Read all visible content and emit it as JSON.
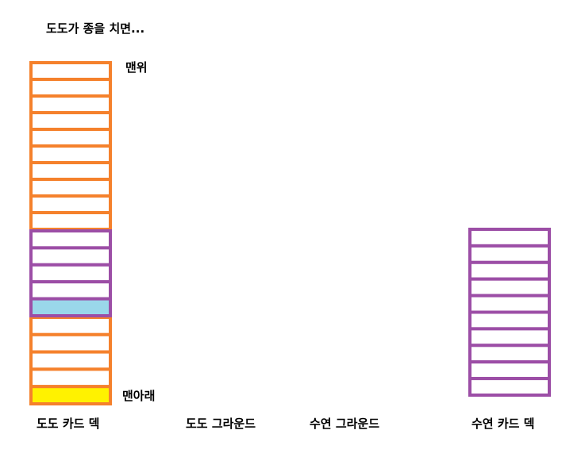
{
  "title": "도도가 종을 치면...",
  "dodo_deck": {
    "top_label": "맨위",
    "bottom_label": "맨아래",
    "name": "도도 카드 덱",
    "segments": [
      {
        "role": "orange-stack-top",
        "border": "orange",
        "cards": 10
      },
      {
        "role": "purple-stack-middle",
        "border": "purple",
        "cards": 5,
        "highlighted_card_index": 4,
        "highlight_fill": "light-blue"
      },
      {
        "role": "orange-stack-bottom",
        "border": "orange",
        "cards": 5,
        "highlighted_card_index": 4,
        "highlight_fill": "yellow"
      }
    ]
  },
  "dodo_ground": {
    "name": "도도 그라운드"
  },
  "suyeon_ground": {
    "name": "수연 그라운드"
  },
  "suyeon_deck": {
    "name": "수연 카드 덱",
    "border": "purple",
    "cards": 10
  },
  "colors": {
    "orange": "#f5812c",
    "purple": "#9c4ea6",
    "light_blue": "#9ad7ea",
    "yellow": "#fff200",
    "background": "#ffffff",
    "text": "#000000"
  }
}
